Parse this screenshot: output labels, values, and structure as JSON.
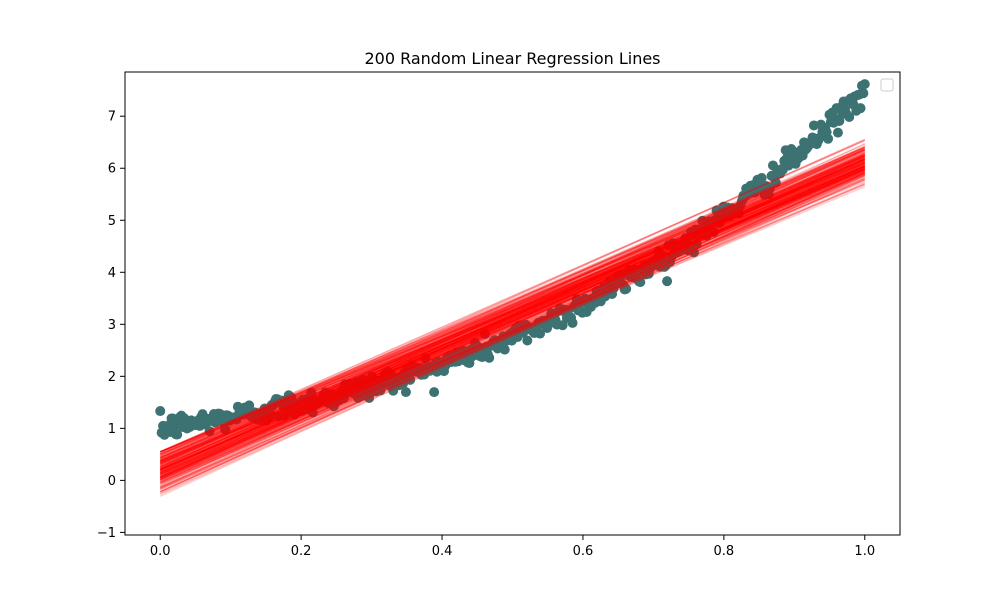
{
  "chart_data": {
    "type": "scatter",
    "title": "200 Random Linear Regression Lines",
    "xlabel": "",
    "ylabel": "",
    "xlim": [
      -0.05,
      1.05
    ],
    "ylim": [
      -1.05,
      7.85
    ],
    "x_ticks": [
      0.0,
      0.2,
      0.4,
      0.6,
      0.8,
      1.0
    ],
    "x_tick_labels": [
      "0.0",
      "0.2",
      "0.4",
      "0.6",
      "0.8",
      "1.0"
    ],
    "y_ticks": [
      -1,
      0,
      1,
      2,
      3,
      4,
      5,
      6,
      7
    ],
    "y_tick_labels": [
      "−1",
      "0",
      "1",
      "2",
      "3",
      "4",
      "5",
      "6",
      "7"
    ],
    "grid": false,
    "legend": {
      "placement": "top-right",
      "entries": []
    },
    "series": [
      {
        "kind": "scatter",
        "color": "#3d7272",
        "n_points": 500,
        "x_range": [
          0,
          1
        ],
        "trend": "y ≈ 1 + 2x + 1.5x^2 + 3x^3 (approx.)",
        "noise_sd": 0.12,
        "sample_points": [
          [
            0.0,
            1.1
          ],
          [
            0.1,
            1.3
          ],
          [
            0.2,
            1.6
          ],
          [
            0.3,
            1.85
          ],
          [
            0.4,
            2.2
          ],
          [
            0.5,
            2.65
          ],
          [
            0.6,
            3.2
          ],
          [
            0.7,
            3.9
          ],
          [
            0.8,
            4.85
          ],
          [
            0.9,
            6.0
          ],
          [
            1.0,
            7.4
          ]
        ]
      },
      {
        "kind": "lines",
        "color": "#ff0000",
        "count": 200,
        "opacity": 0.2,
        "intercept_mean": 0.2,
        "intercept_range": [
          -0.65,
          0.55
        ],
        "slope_mean": 5.9,
        "slope_range": [
          5.3,
          7.2
        ]
      }
    ]
  }
}
